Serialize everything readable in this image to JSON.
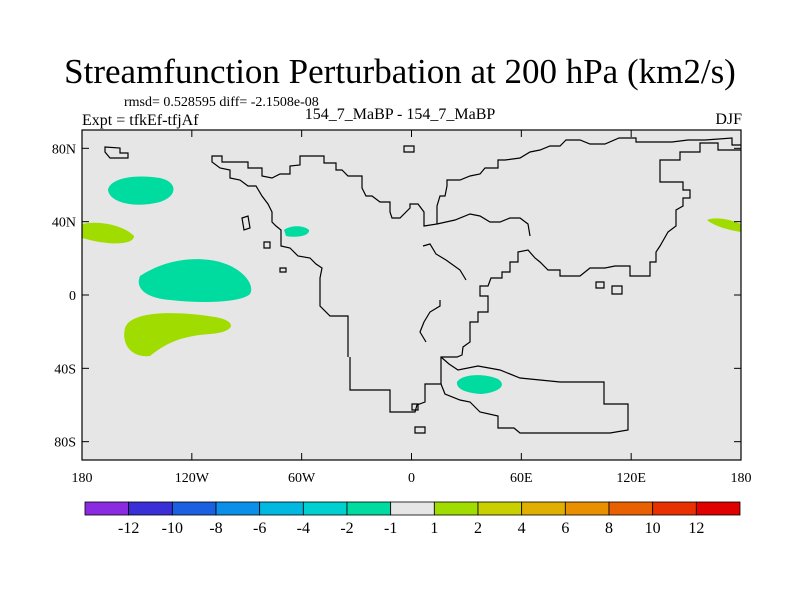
{
  "title": "Streamfunction Perturbation at 200 hPa (km2/s)",
  "stats_line": "rmsd= 0.528595 diff= -2.1508e-08",
  "left_label": "Expt = tfkEf-tfjAf",
  "center_label": "154_7_MaBP - 154_7_MaBP",
  "right_label": "DJF",
  "map": {
    "background_color": "#e6e6e6",
    "coastline_color": "#000000",
    "lat_ticks": [
      {
        "value": 80,
        "label": "80N"
      },
      {
        "value": 40,
        "label": "40N"
      },
      {
        "value": 0,
        "label": "0"
      },
      {
        "value": -40,
        "label": "40S"
      },
      {
        "value": -80,
        "label": "80S"
      }
    ],
    "lon_ticks": [
      {
        "value": -180,
        "label": "180"
      },
      {
        "value": -120,
        "label": "120W"
      },
      {
        "value": -60,
        "label": "60W"
      },
      {
        "value": 0,
        "label": "0"
      },
      {
        "value": 60,
        "label": "60E"
      },
      {
        "value": 120,
        "label": "120E"
      },
      {
        "value": 180,
        "label": "180"
      }
    ]
  },
  "colorbar": {
    "colors": [
      "#8a2be2",
      "#3a2fd6",
      "#1a60e0",
      "#0a90e8",
      "#00b8e0",
      "#00d0d0",
      "#00dca0",
      "#e6e6e6",
      "#a0dc00",
      "#c8d000",
      "#e0b000",
      "#e89000",
      "#e86000",
      "#e83000",
      "#e00000"
    ],
    "labels": [
      "-12",
      "-10",
      "-8",
      "-6",
      "-4",
      "-2",
      "-1",
      "1",
      "2",
      "4",
      "6",
      "8",
      "10",
      "12"
    ]
  }
}
